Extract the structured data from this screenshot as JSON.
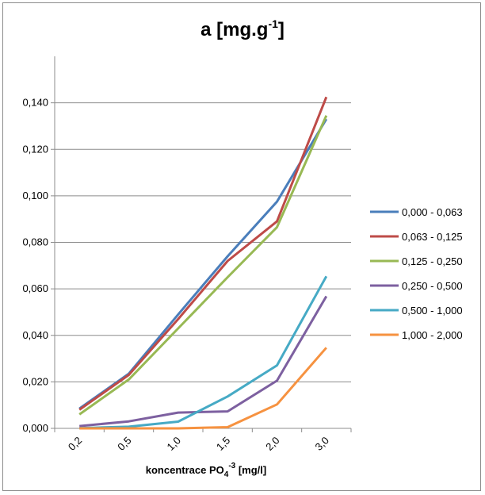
{
  "chart_data": {
    "type": "line",
    "title_main": "a [mg.g",
    "title_sup": "-1",
    "title_end": "]",
    "xlabel_main": "koncentrace PO",
    "xlabel_sub": "4",
    "xlabel_sup": "-3",
    "xlabel_end": " [mg/l]",
    "categories": [
      "0,2",
      "0,5",
      "1,0",
      "1,5",
      "2,0",
      "3,0"
    ],
    "y_ticks": [
      "0,000",
      "0,020",
      "0,040",
      "0,060",
      "0,080",
      "0,100",
      "0,120",
      "0,140"
    ],
    "ylim": [
      0,
      0.16
    ],
    "legend_position": "right",
    "grid": true,
    "series": [
      {
        "name": "0,000 - 0,063",
        "color": "#4A7EBB",
        "values": [
          0.0085,
          0.0235,
          0.049,
          0.074,
          0.0975,
          0.133
        ]
      },
      {
        "name": "0,063 - 0,125",
        "color": "#BE4B48",
        "values": [
          0.008,
          0.023,
          0.047,
          0.072,
          0.089,
          0.1425
        ]
      },
      {
        "name": "0,125 - 0,250",
        "color": "#98B954",
        "values": [
          0.006,
          0.021,
          0.043,
          0.065,
          0.0865,
          0.1345
        ]
      },
      {
        "name": "0,250 - 0,500",
        "color": "#7D60A0",
        "values": [
          0.001,
          0.003,
          0.0068,
          0.0073,
          0.0205,
          0.0568
        ]
      },
      {
        "name": "0,500 - 1,000",
        "color": "#46AAC5",
        "values": [
          0.0001,
          0.0007,
          0.0029,
          0.0137,
          0.0271,
          0.0654
        ]
      },
      {
        "name": "1,000 - 2,000",
        "color": "#F69240",
        "values": [
          0.0,
          0.0,
          0.0,
          0.0005,
          0.0103,
          0.0347
        ]
      }
    ]
  }
}
